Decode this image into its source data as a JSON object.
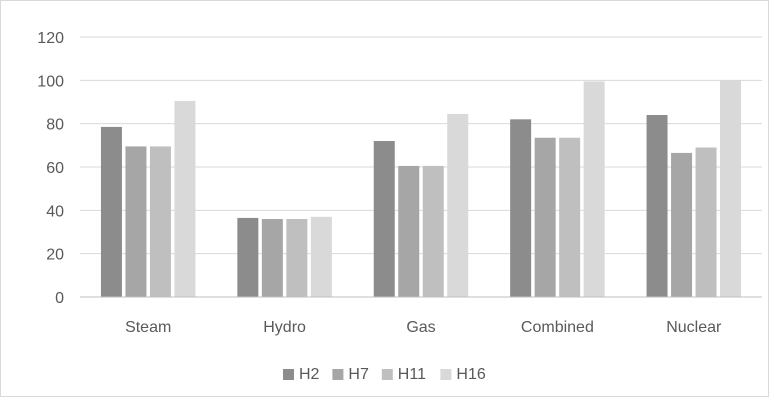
{
  "chart_data": {
    "type": "bar",
    "title": "",
    "xlabel": "",
    "ylabel": "",
    "categories": [
      "Steam",
      "Hydro",
      "Gas",
      "Combined",
      "Nuclear"
    ],
    "series": [
      {
        "name": "H2",
        "color": "#8c8c8c",
        "values": [
          78.5,
          36.5,
          72.0,
          82.0,
          84.0
        ]
      },
      {
        "name": "H7",
        "color": "#a6a6a6",
        "values": [
          69.5,
          36.0,
          60.5,
          73.5,
          66.5
        ]
      },
      {
        "name": "H11",
        "color": "#bfbfbf",
        "values": [
          69.5,
          36.0,
          60.5,
          73.5,
          69.0
        ]
      },
      {
        "name": "H16",
        "color": "#d9d9d9",
        "values": [
          90.5,
          37.0,
          84.5,
          99.5,
          100.0
        ]
      }
    ],
    "ylim": [
      0,
      120
    ],
    "yticks": [
      0,
      20,
      40,
      60,
      80,
      100,
      120
    ],
    "grid": true,
    "legend_position": "bottom"
  }
}
